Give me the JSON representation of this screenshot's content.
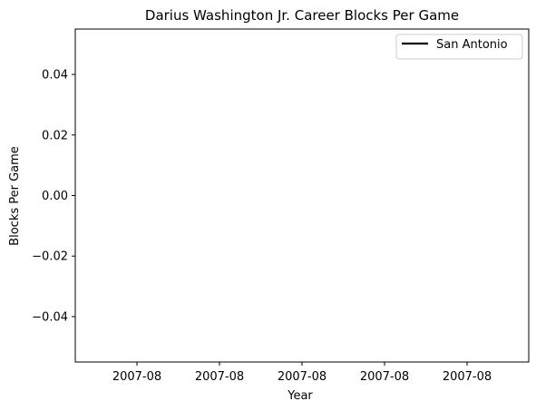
{
  "chart_data": {
    "type": "line",
    "title": "Darius Washington Jr. Career Blocks Per Game",
    "xlabel": "Year",
    "ylabel": "Blocks Per Game",
    "x_tick_labels": [
      "2007-08",
      "2007-08",
      "2007-08",
      "2007-08",
      "2007-08"
    ],
    "y_ticks": [
      0.04,
      0.02,
      0.0,
      -0.02,
      -0.04
    ],
    "y_tick_labels": [
      "0.04",
      "0.02",
      "0.00",
      "−0.02",
      "−0.04"
    ],
    "ylim": [
      -0.055,
      0.055
    ],
    "grid": false,
    "legend_position": "top-right",
    "series": [
      {
        "name": "San Antonio",
        "color": "#000000",
        "x": [
          "2007-08"
        ],
        "y": [
          0
        ]
      }
    ]
  }
}
